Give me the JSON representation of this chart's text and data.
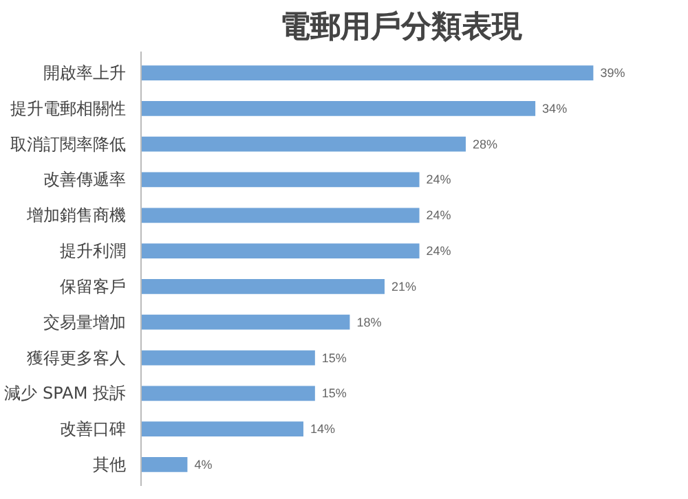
{
  "chart_data": {
    "type": "bar",
    "orientation": "horizontal",
    "title": "電郵用戶分類表現",
    "categories": [
      "開啟率上升",
      "提升電郵相關性",
      "取消訂閱率降低",
      "改善傳遞率",
      "增加銷售商機",
      "提升利潤",
      "保留客戶",
      "交易量增加",
      "獲得更多客人",
      "減少 SPAM 投訴",
      "改善口碑",
      "其他"
    ],
    "values": [
      39,
      34,
      28,
      24,
      24,
      24,
      21,
      18,
      15,
      15,
      14,
      4
    ],
    "value_labels": [
      "39%",
      "34%",
      "28%",
      "24%",
      "24%",
      "24%",
      "21%",
      "18%",
      "15%",
      "15%",
      "14%",
      "4%"
    ],
    "color": "#6fa3d8",
    "grid": false
  }
}
